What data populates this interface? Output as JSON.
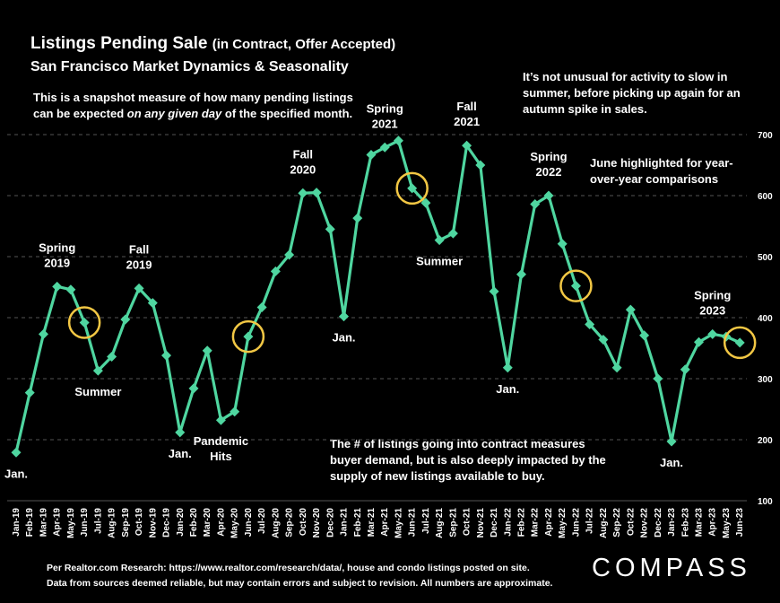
{
  "header": {
    "title_main": "Listings Pending Sale",
    "title_paren": "(in Contract, Offer Accepted)",
    "subtitle": "San Francisco Market Dynamics & Seasonality"
  },
  "notes": {
    "left_pre": "This is a snapshot measure of how many pending listings can be expected ",
    "left_italic": "on any given day",
    "left_post": " of the specified month.",
    "right": "It’s not unusual for activity to slow in summer, before picking up again for an autumn spike in sales.",
    "june": "June highlighted for year-over-year comparisons",
    "bottom": "The # of listings going into contract measures buyer demand, but is also deeply impacted by the supply of new listings available to buy."
  },
  "footer": {
    "line1": "Per Realtor.com Research:  https://www.realtor.com/research/data/, house and condo listings posted on site.",
    "line2": "Data from sources deemed reliable, but may contain errors and subject to revision. All numbers are approximate."
  },
  "logo": "COMPASS",
  "colors": {
    "line": "#4fd6a0",
    "marker": "#4fd6a0",
    "highlight": "#f2c744",
    "background": "#000000",
    "grid": "#555555"
  },
  "chart_data": {
    "type": "line",
    "ylim": [
      100,
      700
    ],
    "yticks": [
      100,
      200,
      300,
      400,
      500,
      600,
      700
    ],
    "y_axis_position": "right",
    "grid": "horizontal dashed",
    "categories": [
      "Jan-19",
      "Feb-19",
      "Mar-19",
      "Apr-19",
      "May-19",
      "Jun-19",
      "Jul-19",
      "Aug-19",
      "Sep-19",
      "Oct-19",
      "Nov-19",
      "Dec-19",
      "Jan-20",
      "Feb-20",
      "Mar-20",
      "Apr-20",
      "May-20",
      "Jun-20",
      "Jul-20",
      "Aug-20",
      "Sep-20",
      "Oct-20",
      "Nov-20",
      "Dec-20",
      "Jan-21",
      "Feb-21",
      "Mar-21",
      "Apr-21",
      "May-21",
      "Jun-21",
      "Jul-21",
      "Aug-21",
      "Sep-21",
      "Oct-21",
      "Nov-21",
      "Dec-21",
      "Jan-22",
      "Feb-22",
      "Mar-22",
      "Apr-22",
      "May-22",
      "Jun-22",
      "Jul-22",
      "Aug-22",
      "Sep-22",
      "Oct-22",
      "Nov-22",
      "Dec-22",
      "Jan-23",
      "Feb-23",
      "Mar-23",
      "Apr-23",
      "May-23",
      "Jun-23"
    ],
    "series": [
      {
        "values": [
          179,
          277,
          373,
          451,
          446,
          392,
          313,
          336,
          397,
          448,
          424,
          338,
          212,
          284,
          346,
          232,
          246,
          369,
          417,
          476,
          503,
          604,
          605,
          545,
          402,
          563,
          667,
          679,
          690,
          612,
          588,
          527,
          538,
          682,
          650,
          443,
          318,
          471,
          586,
          600,
          521,
          452,
          389,
          364,
          318,
          413,
          371,
          300,
          197,
          315,
          360,
          373,
          369,
          359
        ]
      }
    ],
    "highlighted_categories": [
      "Jun-19",
      "Jun-20",
      "Jun-21",
      "Jun-22",
      "Jun-23"
    ],
    "annotations": [
      {
        "text": "Jan.",
        "category": "Jan-19",
        "position": "below"
      },
      {
        "text": "Spring 2019",
        "category": "Apr-19",
        "position": "above"
      },
      {
        "text": "Summer",
        "category": "Jul-19",
        "position": "below"
      },
      {
        "text": "Fall 2019",
        "category": "Oct-19",
        "position": "above"
      },
      {
        "text": "Jan.",
        "category": "Jan-20",
        "position": "below"
      },
      {
        "text": "Pandemic Hits",
        "category": "Apr-20",
        "position": "below"
      },
      {
        "text": "Fall 2020",
        "category": "Oct-20",
        "position": "above"
      },
      {
        "text": "Jan.",
        "category": "Jan-21",
        "position": "below"
      },
      {
        "text": "Spring 2021",
        "category": "Apr-21",
        "position": "above"
      },
      {
        "text": "Summer",
        "category": "Aug-21",
        "position": "below"
      },
      {
        "text": "Fall 2021",
        "category": "Oct-21",
        "position": "above"
      },
      {
        "text": "Jan.",
        "category": "Jan-22",
        "position": "below"
      },
      {
        "text": "Spring 2022",
        "category": "Apr-22",
        "position": "above"
      },
      {
        "text": "Jan.",
        "category": "Jan-23",
        "position": "below"
      },
      {
        "text": "Spring 2023",
        "category": "Apr-23",
        "position": "above"
      }
    ]
  }
}
